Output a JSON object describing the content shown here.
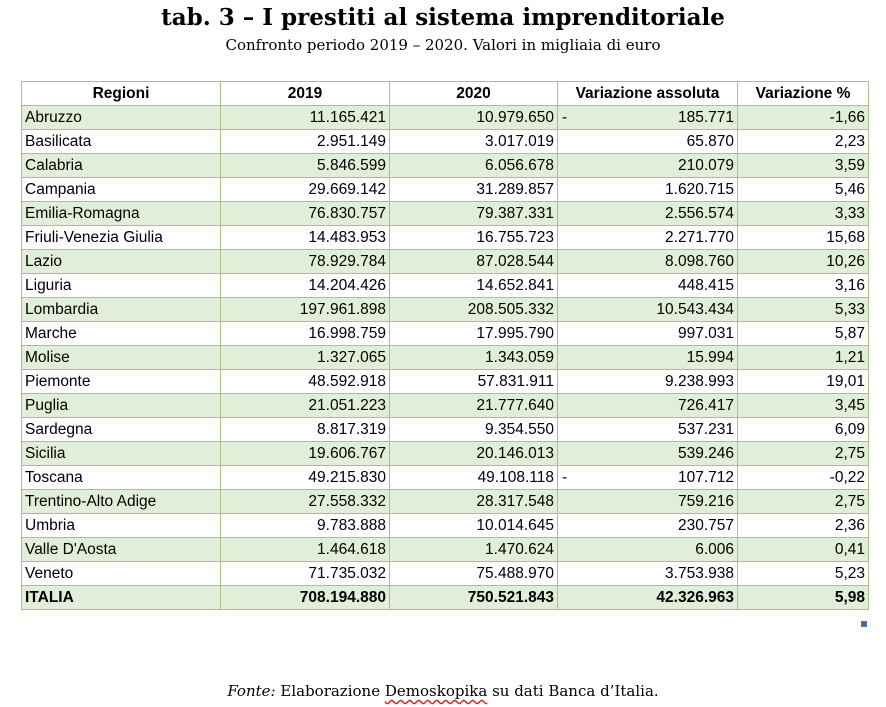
{
  "title": "tab. 3 – I prestiti al sistema imprenditoriale",
  "subtitle": "Confronto periodo 2019 – 2020. Valori in migliaia di euro",
  "table": {
    "headers": [
      "Regioni",
      "2019",
      "2020",
      "Variazione assoluta",
      "Variazione %"
    ],
    "rows": [
      {
        "region": "Abruzzo",
        "v2019": "11.165.421",
        "v2020": "10.979.650",
        "sign": "-",
        "abs": "185.771",
        "pct": "-1,66"
      },
      {
        "region": "Basilicata",
        "v2019": "2.951.149",
        "v2020": "3.017.019",
        "sign": "",
        "abs": "65.870",
        "pct": "2,23"
      },
      {
        "region": "Calabria",
        "v2019": "5.846.599",
        "v2020": "6.056.678",
        "sign": "",
        "abs": "210.079",
        "pct": "3,59"
      },
      {
        "region": "Campania",
        "v2019": "29.669.142",
        "v2020": "31.289.857",
        "sign": "",
        "abs": "1.620.715",
        "pct": "5,46"
      },
      {
        "region": "Emilia-Romagna",
        "v2019": "76.830.757",
        "v2020": "79.387.331",
        "sign": "",
        "abs": "2.556.574",
        "pct": "3,33"
      },
      {
        "region": "Friuli-Venezia Giulia",
        "v2019": "14.483.953",
        "v2020": "16.755.723",
        "sign": "",
        "abs": "2.271.770",
        "pct": "15,68"
      },
      {
        "region": "Lazio",
        "v2019": "78.929.784",
        "v2020": "87.028.544",
        "sign": "",
        "abs": "8.098.760",
        "pct": "10,26"
      },
      {
        "region": "Liguria",
        "v2019": "14.204.426",
        "v2020": "14.652.841",
        "sign": "",
        "abs": "448.415",
        "pct": "3,16"
      },
      {
        "region": "Lombardia",
        "v2019": "197.961.898",
        "v2020": "208.505.332",
        "sign": "",
        "abs": "10.543.434",
        "pct": "5,33"
      },
      {
        "region": "Marche",
        "v2019": "16.998.759",
        "v2020": "17.995.790",
        "sign": "",
        "abs": "997.031",
        "pct": "5,87"
      },
      {
        "region": "Molise",
        "v2019": "1.327.065",
        "v2020": "1.343.059",
        "sign": "",
        "abs": "15.994",
        "pct": "1,21"
      },
      {
        "region": "Piemonte",
        "v2019": "48.592.918",
        "v2020": "57.831.911",
        "sign": "",
        "abs": "9.238.993",
        "pct": "19,01"
      },
      {
        "region": "Puglia",
        "v2019": "21.051.223",
        "v2020": "21.777.640",
        "sign": "",
        "abs": "726.417",
        "pct": "3,45"
      },
      {
        "region": "Sardegna",
        "v2019": "8.817.319",
        "v2020": "9.354.550",
        "sign": "",
        "abs": "537.231",
        "pct": "6,09"
      },
      {
        "region": "Sicilia",
        "v2019": "19.606.767",
        "v2020": "20.146.013",
        "sign": "",
        "abs": "539.246",
        "pct": "2,75"
      },
      {
        "region": "Toscana",
        "v2019": "49.215.830",
        "v2020": "49.108.118",
        "sign": "-",
        "abs": "107.712",
        "pct": "-0,22"
      },
      {
        "region": "Trentino-Alto Adige",
        "v2019": "27.558.332",
        "v2020": "28.317.548",
        "sign": "",
        "abs": "759.216",
        "pct": "2,75"
      },
      {
        "region": "Umbria",
        "v2019": "9.783.888",
        "v2020": "10.014.645",
        "sign": "",
        "abs": "230.757",
        "pct": "2,36"
      },
      {
        "region": "Valle D'Aosta",
        "v2019": "1.464.618",
        "v2020": "1.470.624",
        "sign": "",
        "abs": "6.006",
        "pct": "0,41"
      },
      {
        "region": "Veneto",
        "v2019": "71.735.032",
        "v2020": "75.488.970",
        "sign": "",
        "abs": "3.753.938",
        "pct": "5,23"
      }
    ],
    "total": {
      "region": "ITALIA",
      "v2019": "708.194.880",
      "v2020": "750.521.843",
      "abs": "42.326.963",
      "pct": "5,98"
    }
  },
  "source": {
    "label": "Fonte:",
    "text_before": "Elaborazione",
    "org": "Demoskopika",
    "text_after": "su dati Banca d’Italia."
  },
  "colors": {
    "row_band": "#e3eed8",
    "border": "#a7c08c"
  }
}
